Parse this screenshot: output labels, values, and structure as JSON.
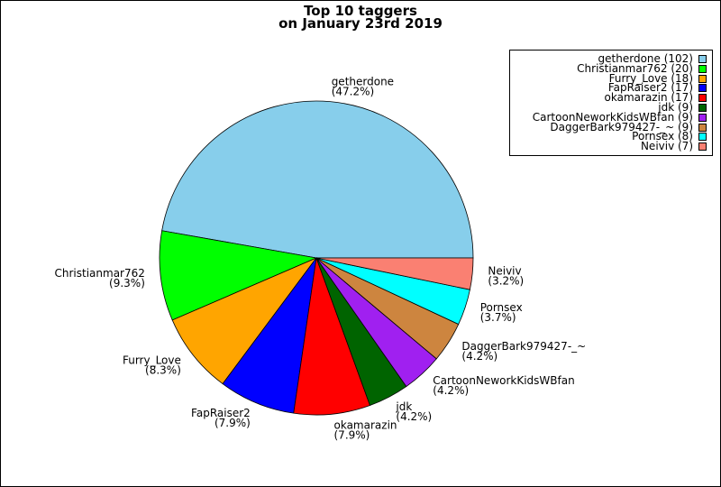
{
  "chart_data": {
    "type": "pie",
    "title": "Top 10 taggers\non January 23rd 2019",
    "title_lines": [
      "Top 10 taggers",
      "on January 23rd 2019"
    ],
    "legend_position": "top-right",
    "slices": [
      {
        "label": "getherdone",
        "value": 102,
        "percent_label": "(47.2%)",
        "legend": "getherdone (102)",
        "color": "#87ceeb"
      },
      {
        "label": "Christianmar762",
        "value": 20,
        "percent_label": "(9.3%)",
        "legend": "Christianmar762 (20)",
        "color": "#00ff00"
      },
      {
        "label": "Furry_Love",
        "value": 18,
        "percent_label": "(8.3%)",
        "legend": "Furry_Love (18)",
        "color": "#ffa500"
      },
      {
        "label": "FapRaiser2",
        "value": 17,
        "percent_label": "(7.9%)",
        "legend": "FapRaiser2 (17)",
        "color": "#0000ff"
      },
      {
        "label": "okamarazin",
        "value": 17,
        "percent_label": "(7.9%)",
        "legend": "okamarazin (17)",
        "color": "#ff0000"
      },
      {
        "label": "jdk",
        "value": 9,
        "percent_label": "(4.2%)",
        "legend": "jdk (9)",
        "color": "#006400"
      },
      {
        "label": "CartoonNeworkKidsWBfan",
        "value": 9,
        "percent_label": "(4.2%)",
        "legend": "CartoonNeworkKidsWBfan (9)",
        "color": "#a020f0"
      },
      {
        "label": "DaggerBark979427-_~",
        "value": 9,
        "percent_label": "(4.2%)",
        "legend": "DaggerBark979427-_~ (9)",
        "color": "#cd853f"
      },
      {
        "label": "Pornsex",
        "value": 8,
        "percent_label": "(3.7%)",
        "legend": "Pornsex (8)",
        "color": "#00ffff"
      },
      {
        "label": "Neiviv",
        "value": 7,
        "percent_label": "(3.2%)",
        "legend": "Neiviv (7)",
        "color": "#fa8072"
      }
    ]
  }
}
